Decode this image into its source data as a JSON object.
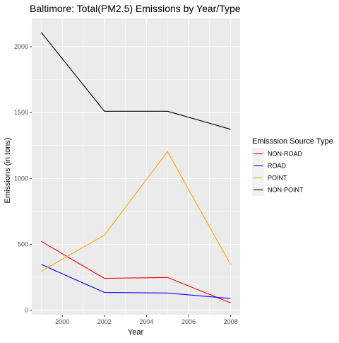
{
  "chart_data": {
    "type": "line",
    "title": "Baltimore: Total(PM2.5) Emissions by Year/Type",
    "xlabel": "Year",
    "ylabel": "Emissions (in tons)",
    "x": [
      1999,
      2002,
      2005,
      2008
    ],
    "x_ticks": [
      2000,
      2002,
      2004,
      2006,
      2008
    ],
    "y_ticks": [
      0,
      500,
      1000,
      1500,
      2000
    ],
    "xlim": [
      1998.55,
      2008.45
    ],
    "ylim": [
      -35,
      2215
    ],
    "grid": true,
    "legend": {
      "title": "Emisssion Source Type",
      "placement": "right"
    },
    "series": [
      {
        "name": "NON-ROAD",
        "color": "#ff0000",
        "values": [
          522,
          241,
          248,
          55
        ]
      },
      {
        "name": "ROAD",
        "color": "#0000ff",
        "values": [
          347,
          134,
          130,
          88
        ]
      },
      {
        "name": "POINT",
        "color": "#ffa500",
        "values": [
          296,
          569,
          1203,
          345
        ]
      },
      {
        "name": "NON-POINT",
        "color": "#000000",
        "values": [
          2108,
          1510,
          1510,
          1373
        ]
      }
    ]
  }
}
